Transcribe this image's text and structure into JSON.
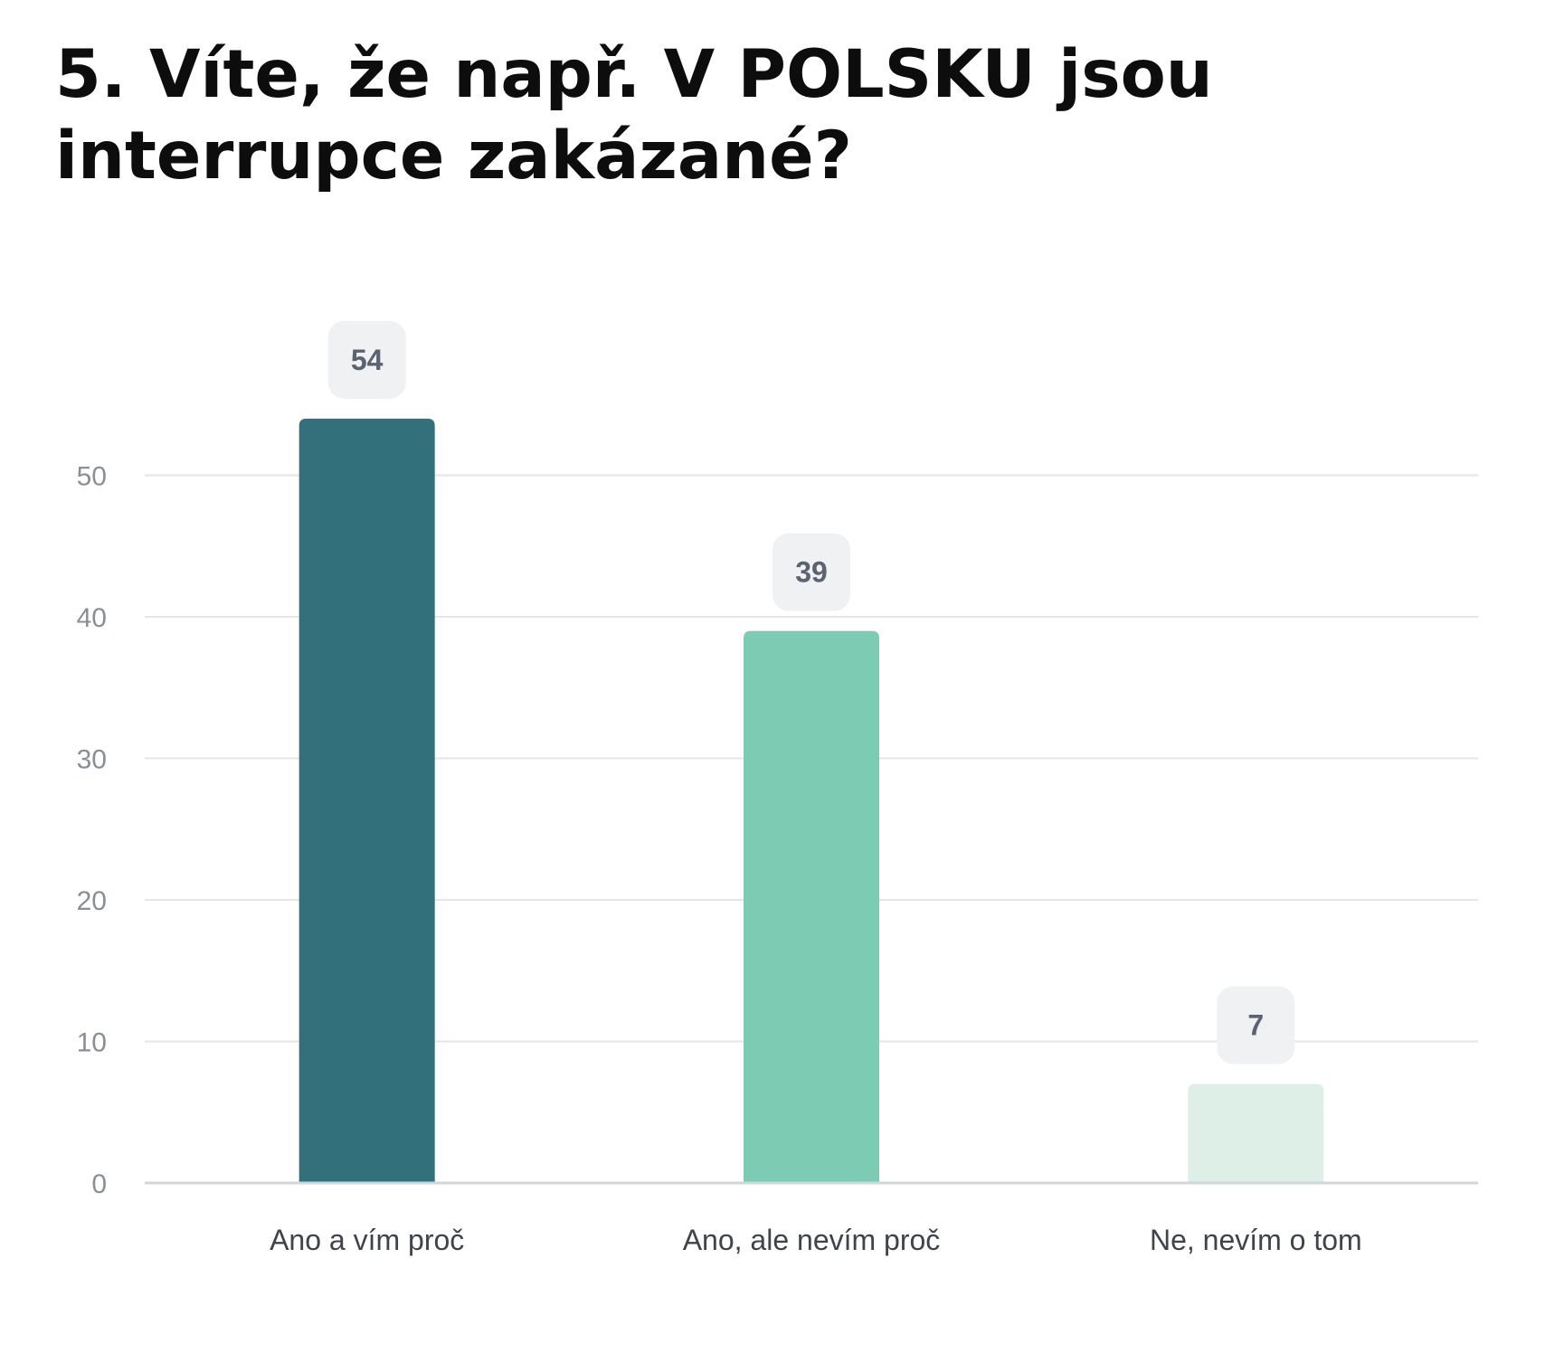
{
  "title": "5. Víte, že např. V POLSKU jsou interrupce zakázané?",
  "chart_data": {
    "type": "bar",
    "title": "5. Víte, že např. V POLSKU jsou interrupce zakázané?",
    "categories": [
      "Ano a vím proč",
      "Ano, ale nevím proč",
      "Ne, nevím o tom"
    ],
    "values": [
      54,
      39,
      7
    ],
    "colors": [
      "#32707c",
      "#7ecbb4",
      "#ddefe7"
    ],
    "yticks": [
      0,
      10,
      20,
      30,
      40,
      50
    ],
    "ylim": [
      0,
      60
    ],
    "xlabel": "",
    "ylabel": "",
    "grid": true,
    "data_labels": true,
    "label_badge_color": "#f0f1f2",
    "gridline_color": "#e4e6e8",
    "axis_color": "#cfd6de"
  }
}
